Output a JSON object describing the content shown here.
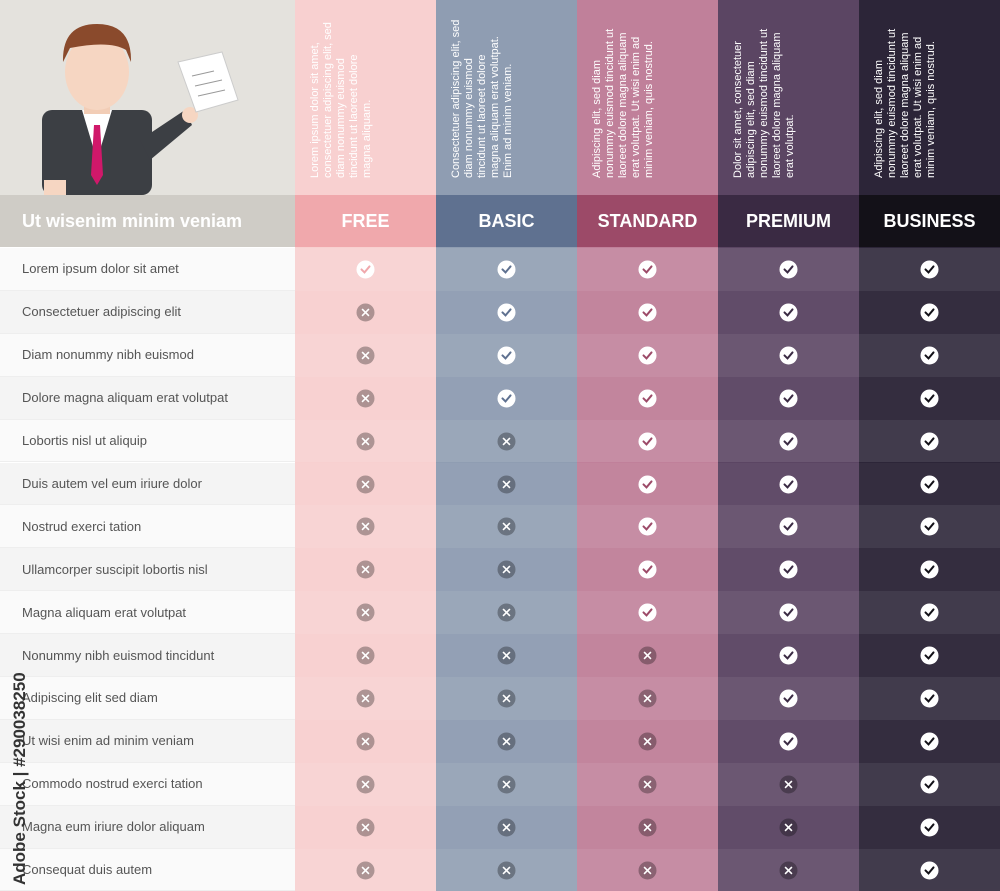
{
  "header": {
    "title": "Ut wisenim minim veniam"
  },
  "watermark": "Adobe Stock | #290038250",
  "plans": [
    {
      "name": "FREE",
      "color": "#f8d0d0",
      "band_color": "#f0a8ac",
      "text_color": "#ffffff",
      "description": "Lorem ipsum dolor sit amet, consectetuer adipiscing elit, sed diam nonummy euismod tincidunt ut laoreet dolore magna aliquam.",
      "included": [
        true,
        false,
        false,
        false,
        false,
        false,
        false,
        false,
        false,
        false,
        false,
        false,
        false,
        false,
        false
      ]
    },
    {
      "name": "BASIC",
      "color": "#8f9db2",
      "band_color": "#5f7190",
      "text_color": "#ffffff",
      "description": "Consectetuer adipiscing elit, sed diam nonummy euismod tincidunt ut laoreet dolore magna aliquam erat volutpat. Enim ad minim veniam.",
      "included": [
        true,
        true,
        true,
        true,
        false,
        false,
        false,
        false,
        false,
        false,
        false,
        false,
        false,
        false,
        false
      ]
    },
    {
      "name": "STANDARD",
      "color": "#c0809a",
      "band_color": "#9c4a68",
      "text_color": "#ffffff",
      "description": "Adipiscing elit, sed diam nonummy euismod tincidunt ut laoreet dolore magna aliquam erat volutpat. Ut wisi enim ad minim veniam, quis nostrud.",
      "included": [
        true,
        true,
        true,
        true,
        true,
        true,
        true,
        true,
        true,
        false,
        false,
        false,
        false,
        false,
        false
      ]
    },
    {
      "name": "PREMIUM",
      "color": "#5b4563",
      "band_color": "#3a2a43",
      "text_color": "#ffffff",
      "description": "Dolor sit amet, consectetuer adipiscing elit, sed diam nonummy euismod tincidunt ut laoreet dolore magna aliquam erat volutpat.",
      "included": [
        true,
        true,
        true,
        true,
        true,
        true,
        true,
        true,
        true,
        true,
        true,
        true,
        false,
        false,
        false
      ]
    },
    {
      "name": "BUSINESS",
      "color": "#2c2538",
      "band_color": "#131118",
      "text_color": "#ffffff",
      "description": "Adipiscing elit, sed diam nonummy euismod tincidunt ut laoreet dolore magna aliquam erat volutpat. Ut wisi enim ad minim veniam, quis nostrud.",
      "included": [
        true,
        true,
        true,
        true,
        true,
        true,
        true,
        true,
        true,
        true,
        true,
        true,
        true,
        true,
        true
      ]
    }
  ],
  "features": [
    "Lorem ipsum dolor sit amet",
    "Consectetuer adipiscing elit",
    "Diam nonummy nibh euismod",
    "Dolore magna aliquam erat volutpat",
    "Lobortis nisl ut aliquip",
    "Duis autem vel eum iriure dolor",
    "Nostrud exerci tation",
    "Ullamcorper suscipit lobortis nisl",
    "Magna aliquam erat volutpat",
    "Nonummy nibh euismod tincidunt",
    "Adipiscing elit sed diam",
    "Ut wisi enim ad minim veniam",
    "Commodo nostrud exerci tation",
    "Magna eum iriure dolor aliquam",
    "Consequat duis autem"
  ]
}
